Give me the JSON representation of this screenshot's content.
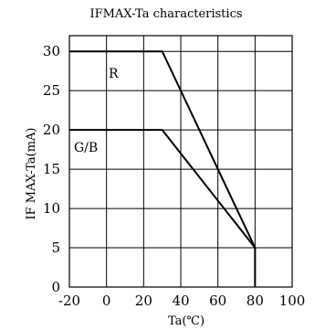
{
  "chart_data": {
    "type": "line",
    "title": "IFMAX-Ta  characteristics",
    "xlabel": "Ta(℃)",
    "ylabel": "IF  MAX-Ta(mA)",
    "xlim": [
      -20,
      100
    ],
    "ylim": [
      0,
      32
    ],
    "x_ticks": [
      "-20",
      "0",
      "20",
      "40",
      "60",
      "80",
      "100"
    ],
    "y_ticks": [
      "0",
      "5",
      "10",
      "15",
      "20",
      "25",
      "30"
    ],
    "grid": "on",
    "series": [
      {
        "name": "R",
        "x": [
          -20,
          30,
          80,
          80
        ],
        "y": [
          30,
          30,
          5,
          0
        ]
      },
      {
        "name": "G/B",
        "x": [
          -20,
          30,
          80
        ],
        "y": [
          20,
          20,
          5
        ]
      }
    ]
  }
}
